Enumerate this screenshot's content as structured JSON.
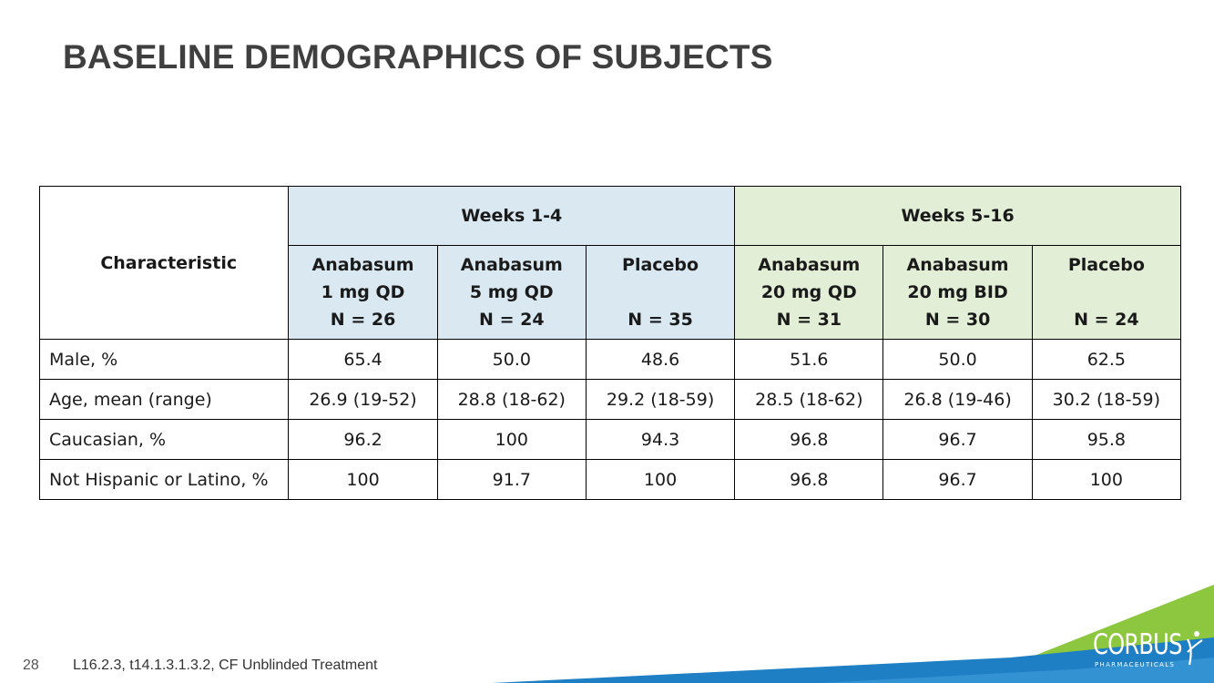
{
  "title": "BASELINE DEMOGRAPHICS OF SUBJECTS",
  "table": {
    "characteristic_header": "Characteristic",
    "periods": [
      "Weeks 1-4",
      "Weeks 5-16"
    ],
    "arms": [
      {
        "line1": "Anabasum",
        "line2": "1 mg QD",
        "n": "N = 26"
      },
      {
        "line1": "Anabasum",
        "line2": "5 mg QD",
        "n": "N = 24"
      },
      {
        "line1": "Placebo",
        "line2": "",
        "n": "N = 35"
      },
      {
        "line1": "Anabasum",
        "line2": "20 mg QD",
        "n": "N = 31"
      },
      {
        "line1": "Anabasum",
        "line2": "20 mg BID",
        "n": "N = 30"
      },
      {
        "line1": "Placebo",
        "line2": "",
        "n": "N = 24"
      }
    ],
    "rows": [
      {
        "label": "Male, %",
        "values": [
          "65.4",
          "50.0",
          "48.6",
          "51.6",
          "50.0",
          "62.5"
        ]
      },
      {
        "label": "Age, mean (range)",
        "values": [
          "26.9 (19-52)",
          "28.8 (18-62)",
          "29.2 (18-59)",
          "28.5 (18-62)",
          "26.8 (19-46)",
          "30.2 (18-59)"
        ]
      },
      {
        "label": "Caucasian, %",
        "values": [
          "96.2",
          "100",
          "94.3",
          "96.8",
          "96.7",
          "95.8"
        ]
      },
      {
        "label": "Not Hispanic or Latino, %",
        "values": [
          "100",
          "91.7",
          "100",
          "96.8",
          "96.7",
          "100"
        ]
      }
    ]
  },
  "footer": {
    "page_number": "28",
    "reference": "L16.2.3, t14.1.3.1.3.2, CF Unblinded Treatment"
  },
  "logo": {
    "name": "CORBUS",
    "subtitle": "PHARMACEUTICALS"
  },
  "colors": {
    "weeks_1_4_header": "#d9e8f1",
    "weeks_5_16_header": "#e2eed6",
    "swoosh_green": "#8dc63f",
    "swoosh_blue": "#1f7fc4",
    "title_text": "#3f3f3f"
  }
}
